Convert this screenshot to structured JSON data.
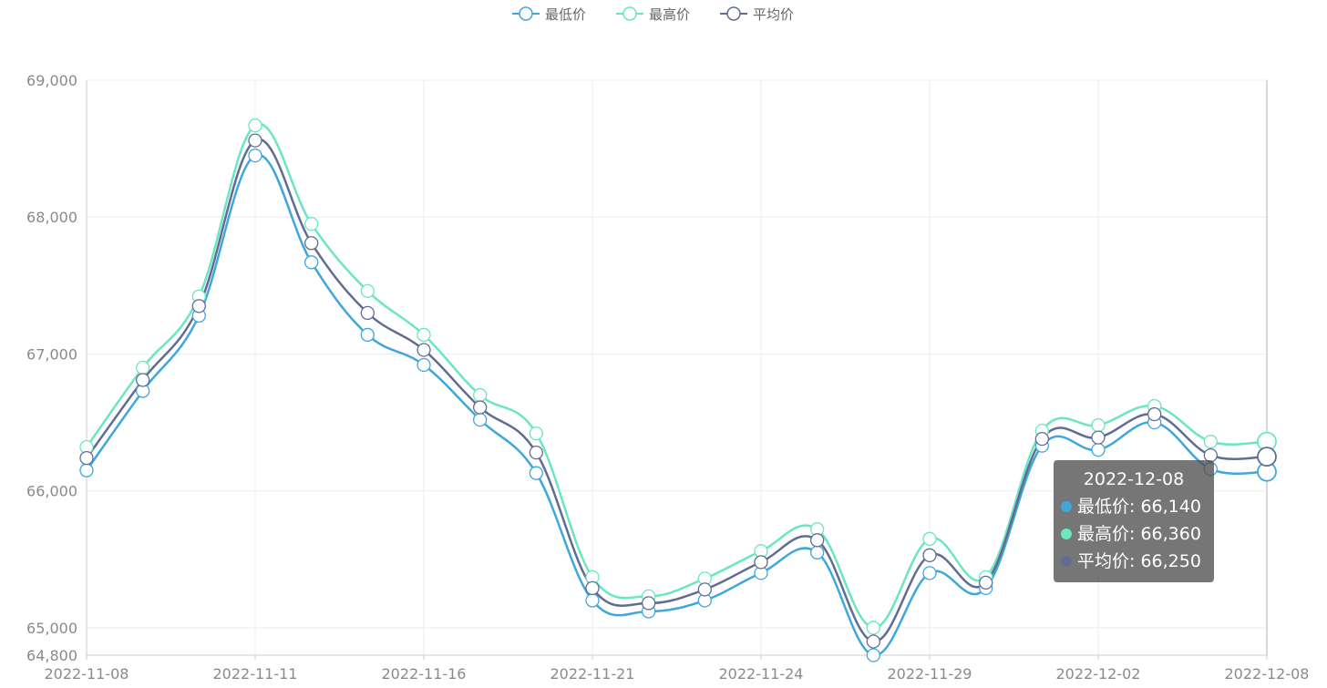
{
  "chart_data": {
    "type": "line",
    "title": "",
    "xlabel": "",
    "ylabel": "",
    "x": [
      "2022-11-08",
      "2022-11-09",
      "2022-11-10",
      "2022-11-11",
      "2022-11-14",
      "2022-11-15",
      "2022-11-16",
      "2022-11-17",
      "2022-11-18",
      "2022-11-21",
      "2022-11-22",
      "2022-11-23",
      "2022-11-24",
      "2022-11-25",
      "2022-11-28",
      "2022-11-29",
      "2022-11-30",
      "2022-12-01",
      "2022-12-02",
      "2022-12-05",
      "2022-12-06",
      "2022-12-08"
    ],
    "x_tick_labels": [
      "2022-11-08",
      "2022-11-11",
      "2022-11-16",
      "2022-11-21",
      "2022-11-24",
      "2022-11-29",
      "2022-12-02",
      "2022-12-08"
    ],
    "y_ticks": [
      64800,
      65000,
      66000,
      67000,
      68000,
      69000
    ],
    "y_tick_labels": [
      "64,800",
      "65,000",
      "66,000",
      "67,000",
      "68,000",
      "69,000"
    ],
    "ylim": [
      64800,
      69000
    ],
    "grid": true,
    "legend_position": "top-center",
    "series": [
      {
        "name": "最低价",
        "color": "#3fa7dc",
        "values": [
          66150,
          66730,
          67280,
          68450,
          67670,
          67140,
          66920,
          66520,
          66130,
          65200,
          65120,
          65200,
          65400,
          65550,
          64800,
          65400,
          65290,
          66330,
          66300,
          66500,
          66160,
          66140
        ]
      },
      {
        "name": "最高价",
        "color": "#6be6c1",
        "values": [
          66320,
          66900,
          67420,
          68670,
          67950,
          67460,
          67140,
          66700,
          66420,
          65370,
          65230,
          65360,
          65560,
          65720,
          65000,
          65650,
          65370,
          66440,
          66480,
          66620,
          66360,
          66360
        ]
      },
      {
        "name": "平均价",
        "color": "#626c91",
        "values": [
          66240,
          66810,
          67350,
          68560,
          67810,
          67300,
          67030,
          66610,
          66280,
          65290,
          65180,
          65280,
          65480,
          65640,
          64900,
          65530,
          65330,
          66380,
          66390,
          66560,
          66260,
          66250
        ]
      }
    ]
  },
  "tooltip": {
    "title": "2022-12-08",
    "rows": [
      {
        "name": "最低价",
        "value": "66,140",
        "color": "#3fa7dc"
      },
      {
        "name": "最高价",
        "value": "66,360",
        "color": "#6be6c1"
      },
      {
        "name": "平均价",
        "value": "66,250",
        "color": "#626c91"
      }
    ]
  }
}
